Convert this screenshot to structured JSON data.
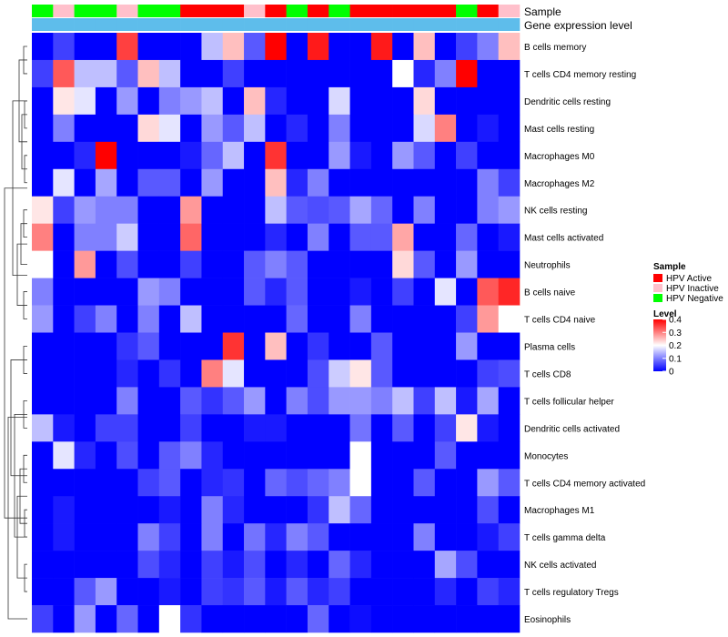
{
  "chart_data": {
    "type": "heatmap",
    "annotation_labels": [
      "Sample",
      "Gene expression level"
    ],
    "sample_annotation": [
      "HPV Negative",
      "HPV Inactive",
      "HPV Negative",
      "HPV Negative",
      "HPV Inactive",
      "HPV Negative",
      "HPV Negative",
      "HPV Active",
      "HPV Active",
      "HPV Active",
      "HPV Inactive",
      "HPV Active",
      "HPV Negative",
      "HPV Active",
      "HPV Negative",
      "HPV Active",
      "HPV Active",
      "HPV Active",
      "HPV Active",
      "HPV Active",
      "HPV Negative",
      "HPV Active",
      "HPV Inactive"
    ],
    "rows": [
      "B cells memory",
      "T cells CD4 memory resting",
      "Dendritic cells resting",
      "Mast cells resting",
      "Macrophages M0",
      "Macrophages M2",
      "NK cells resting",
      "Mast cells activated",
      "Neutrophils",
      "B cells naive",
      "T cells CD4 naive",
      "Plasma cells",
      "T cells CD8",
      "T cells follicular helper",
      "Dendritic cells activated",
      "Monocytes",
      "T cells CD4 memory activated",
      "Macrophages M1",
      "T cells gamma delta",
      "NK cells activated",
      "T cells regulatory  Tregs",
      "Eosinophils"
    ],
    "values": [
      [
        0.0,
        0.05,
        0.0,
        0.0,
        0.35,
        0.0,
        0.0,
        0.0,
        0.15,
        0.25,
        0.07,
        0.4,
        0.0,
        0.38,
        0.0,
        0.0,
        0.38,
        0.0,
        0.25,
        0.0,
        0.05,
        0.1,
        0.25
      ],
      [
        0.05,
        0.33,
        0.15,
        0.15,
        0.07,
        0.25,
        0.15,
        0.0,
        0.0,
        0.05,
        0.0,
        0.0,
        0.0,
        0.0,
        0.0,
        0.0,
        0.0,
        0.2,
        0.03,
        0.1,
        0.4,
        0.0,
        0.0
      ],
      [
        0.0,
        0.22,
        0.18,
        0.0,
        0.12,
        0.0,
        0.1,
        0.12,
        0.15,
        0.0,
        0.25,
        0.03,
        0.0,
        0.0,
        0.17,
        0.0,
        0.0,
        0.0,
        0.23,
        0.0,
        0.0,
        0.0,
        0.0
      ],
      [
        0.0,
        0.1,
        0.0,
        0.0,
        0.0,
        0.23,
        0.18,
        0.0,
        0.12,
        0.07,
        0.15,
        0.0,
        0.03,
        0.0,
        0.1,
        0.0,
        0.0,
        0.0,
        0.17,
        0.3,
        0.0,
        0.02,
        0.0
      ],
      [
        0.0,
        0.0,
        0.03,
        0.4,
        0.0,
        0.0,
        0.0,
        0.02,
        0.08,
        0.15,
        0.0,
        0.36,
        0.0,
        0.0,
        0.12,
        0.02,
        0.0,
        0.12,
        0.07,
        0.0,
        0.05,
        0.0,
        0.0
      ],
      [
        0.0,
        0.18,
        0.0,
        0.13,
        0.0,
        0.07,
        0.07,
        0.0,
        0.12,
        0.0,
        0.0,
        0.25,
        0.03,
        0.1,
        0.0,
        0.0,
        0.0,
        0.0,
        0.0,
        0.0,
        0.0,
        0.1,
        0.05
      ],
      [
        0.22,
        0.05,
        0.12,
        0.1,
        0.1,
        0.0,
        0.0,
        0.28,
        0.0,
        0.0,
        0.0,
        0.15,
        0.07,
        0.06,
        0.07,
        0.13,
        0.08,
        0.0,
        0.1,
        0.0,
        0.0,
        0.1,
        0.12
      ],
      [
        0.3,
        0.0,
        0.1,
        0.1,
        0.16,
        0.0,
        0.0,
        0.32,
        0.0,
        0.0,
        0.0,
        0.03,
        0.0,
        0.1,
        0.0,
        0.07,
        0.07,
        0.27,
        0.0,
        0.0,
        0.08,
        0.0,
        0.02
      ],
      [
        0.2,
        0.0,
        0.28,
        0.0,
        0.06,
        0.0,
        0.0,
        0.05,
        0.0,
        0.0,
        0.07,
        0.1,
        0.07,
        0.0,
        0.0,
        0.0,
        0.0,
        0.23,
        0.07,
        0.0,
        0.12,
        0.0,
        0.0
      ],
      [
        0.1,
        0.0,
        0.0,
        0.0,
        0.0,
        0.12,
        0.1,
        0.0,
        0.0,
        0.0,
        0.07,
        0.03,
        0.07,
        0.0,
        0.0,
        0.02,
        0.0,
        0.05,
        0.0,
        0.18,
        0.0,
        0.33,
        0.37
      ],
      [
        0.12,
        0.0,
        0.05,
        0.1,
        0.0,
        0.1,
        0.0,
        0.15,
        0.0,
        0.0,
        0.0,
        0.0,
        0.08,
        0.0,
        0.0,
        0.1,
        0.0,
        0.0,
        0.0,
        0.0,
        0.05,
        0.28,
        0.2
      ],
      [
        0.0,
        0.0,
        0.0,
        0.0,
        0.04,
        0.07,
        0.0,
        0.0,
        0.0,
        0.36,
        0.0,
        0.25,
        0.0,
        0.04,
        0.0,
        0.0,
        0.07,
        0.0,
        0.0,
        0.0,
        0.12,
        0.0,
        0.0
      ],
      [
        0.0,
        0.0,
        0.0,
        0.0,
        0.03,
        0.0,
        0.04,
        0.0,
        0.3,
        0.18,
        0.0,
        0.0,
        0.0,
        0.06,
        0.16,
        0.22,
        0.07,
        0.0,
        0.0,
        0.0,
        0.0,
        0.05,
        0.06
      ],
      [
        0.0,
        0.0,
        0.0,
        0.0,
        0.1,
        0.0,
        0.0,
        0.07,
        0.04,
        0.07,
        0.12,
        0.0,
        0.1,
        0.06,
        0.12,
        0.12,
        0.1,
        0.15,
        0.05,
        0.15,
        0.02,
        0.13,
        0.0
      ],
      [
        0.15,
        0.02,
        0.0,
        0.05,
        0.05,
        0.0,
        0.0,
        0.05,
        0.0,
        0.0,
        0.02,
        0.02,
        0.0,
        0.0,
        0.0,
        0.09,
        0.0,
        0.07,
        0.0,
        0.05,
        0.22,
        0.02,
        0.0
      ],
      [
        0.0,
        0.18,
        0.03,
        0.0,
        0.06,
        0.0,
        0.07,
        0.1,
        0.03,
        0.0,
        0.0,
        0.0,
        0.0,
        0.0,
        0.0,
        0.2,
        0.0,
        0.0,
        0.0,
        0.07,
        0.0,
        0.0,
        0.0
      ],
      [
        0.0,
        0.0,
        0.0,
        0.0,
        0.0,
        0.05,
        0.07,
        0.0,
        0.03,
        0.04,
        0.0,
        0.08,
        0.06,
        0.08,
        0.1,
        0.2,
        0.0,
        0.0,
        0.07,
        0.0,
        0.0,
        0.12,
        0.07
      ],
      [
        0.0,
        0.02,
        0.0,
        0.0,
        0.0,
        0.0,
        0.02,
        0.0,
        0.1,
        0.03,
        0.0,
        0.0,
        0.0,
        0.04,
        0.15,
        0.08,
        0.0,
        0.0,
        0.0,
        0.0,
        0.0,
        0.06,
        0.0
      ],
      [
        0.0,
        0.02,
        0.0,
        0.0,
        0.0,
        0.1,
        0.05,
        0.0,
        0.1,
        0.0,
        0.09,
        0.03,
        0.1,
        0.07,
        0.0,
        0.0,
        0.0,
        0.0,
        0.1,
        0.0,
        0.0,
        0.02,
        0.05
      ],
      [
        0.0,
        0.0,
        0.0,
        0.0,
        0.0,
        0.06,
        0.03,
        0.0,
        0.05,
        0.02,
        0.06,
        0.0,
        0.03,
        0.0,
        0.08,
        0.03,
        0.0,
        0.0,
        0.0,
        0.13,
        0.06,
        0.0,
        0.0
      ],
      [
        0.0,
        0.0,
        0.07,
        0.12,
        0.0,
        0.0,
        0.02,
        0.0,
        0.05,
        0.04,
        0.07,
        0.02,
        0.07,
        0.03,
        0.05,
        0.0,
        0.0,
        0.0,
        0.0,
        0.03,
        0.0,
        0.05,
        0.03
      ],
      [
        0.05,
        0.0,
        0.12,
        0.0,
        0.08,
        0.0,
        0.2,
        0.04,
        0.0,
        0.0,
        0.0,
        0.0,
        0.0,
        0.08,
        0.0,
        0.01,
        0.0,
        0.0,
        0.0,
        0.0,
        0.0,
        0.0,
        0.0
      ]
    ],
    "gene_expression_color": "#5EBDEB",
    "dendrogram": [
      [
        [
          0.6,
          1
        ],
        [
          1.1,
          1.6
        ],
        [
          1.75,
          2
        ],
        [
          2.4,
          3
        ],
        [
          4.5,
          5
        ],
        [
          2.2,
          4.7
        ],
        [
          1.4,
          3.4
        ],
        [
          0.8,
          2.4
        ],
        [
          6.5,
          7
        ],
        [
          6.8,
          8
        ],
        [
          7.4,
          9
        ],
        [
          9.5,
          10
        ],
        [
          10.5,
          11
        ],
        [
          14.5,
          15
        ],
        [
          16.5,
          17
        ],
        [
          18.5,
          19
        ],
        [
          16.75,
          18.75
        ],
        [
          15.5,
          17.75
        ],
        [
          14.75,
          16.6
        ],
        [
          13.5,
          15.7
        ],
        [
          13,
          14.6
        ],
        [
          12.5,
          13.8
        ],
        [
          12,
          13.15
        ],
        [
          20.5,
          21
        ],
        [
          13.6,
          20.75
        ],
        [
          10.75,
          17.2
        ],
        [
          8.2,
          13.9
        ]
      ]
    ],
    "color_scale": {
      "colors": [
        "#0000FF",
        "#FFFFFF",
        "#FF0000"
      ],
      "range": [
        0,
        0.4
      ]
    },
    "legend": {
      "sample_title": "Sample",
      "sample_items": [
        {
          "label": "HPV Active",
          "color": "#FF0000"
        },
        {
          "label": "HPV Inactive",
          "color": "#FFC0CB"
        },
        {
          "label": "HPV Negative",
          "color": "#00FF00"
        }
      ],
      "level_title": "Level",
      "level_ticks": [
        "0.4",
        "0.3",
        "0.2",
        "0.1",
        "0"
      ],
      "level_tick_values": [
        0.4,
        0.3,
        0.2,
        0.1,
        0
      ]
    }
  }
}
